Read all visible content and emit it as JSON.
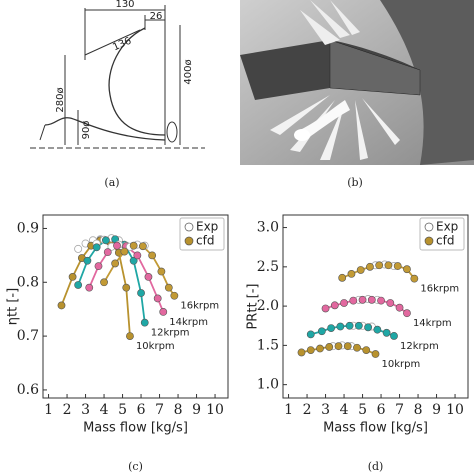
{
  "figures": {
    "a": {
      "caption": "(a)",
      "dimensions": [
        "130",
        "26",
        "136",
        "280ø",
        "400ø",
        "90ø"
      ]
    },
    "b": {
      "caption": "(b)"
    }
  },
  "chart_data": [
    {
      "type": "line",
      "caption": "(c)",
      "ylabel": "ηtt [-]",
      "xlabel": "Mass flow [kg/s]",
      "xlim": [
        0.7,
        10.7
      ],
      "xticks": [
        1,
        2,
        3,
        4,
        5,
        6,
        7,
        8,
        9,
        10
      ],
      "ylim": [
        0.585,
        0.925
      ],
      "yticks": [
        0.6,
        0.7,
        0.8,
        0.9
      ],
      "legend": [
        "Exp",
        "cfd"
      ],
      "legend_position": "upper right",
      "series": [
        {
          "name": "10krpm",
          "color": "#b8922e",
          "x": [
            1.7,
            2.3,
            2.8,
            3.3,
            3.8,
            4.3,
            4.8,
            5.2,
            5.4
          ],
          "values": [
            0.757,
            0.81,
            0.845,
            0.868,
            0.878,
            0.875,
            0.855,
            0.79,
            0.7
          ],
          "exp_x": [
            2.6,
            3.0,
            3.4,
            3.8
          ],
          "exp_values": [
            0.862,
            0.872,
            0.878,
            0.88
          ]
        },
        {
          "name": "12krpm",
          "color": "#1fa7a5",
          "x": [
            2.6,
            3.1,
            3.6,
            4.1,
            4.6,
            5.1,
            5.6,
            6.0,
            6.2
          ],
          "values": [
            0.795,
            0.84,
            0.865,
            0.878,
            0.88,
            0.87,
            0.84,
            0.78,
            0.725
          ],
          "exp_x": [
            3.6,
            4.0,
            4.4,
            4.8
          ],
          "exp_values": [
            0.872,
            0.879,
            0.882,
            0.878
          ]
        },
        {
          "name": "14krpm",
          "color": "#e2689f",
          "x": [
            3.2,
            3.7,
            4.2,
            4.7,
            5.2,
            5.8,
            6.4,
            6.9,
            7.2
          ],
          "values": [
            0.79,
            0.83,
            0.856,
            0.868,
            0.867,
            0.85,
            0.81,
            0.77,
            0.745
          ],
          "exp_x": [
            4.4,
            4.8,
            5.2
          ],
          "exp_values": [
            0.866,
            0.87,
            0.868
          ]
        },
        {
          "name": "16krpm",
          "color": "#c29a35",
          "x": [
            4.0,
            4.6,
            5.1,
            5.6,
            6.1,
            6.6,
            7.1,
            7.5,
            7.8
          ],
          "values": [
            0.8,
            0.835,
            0.857,
            0.868,
            0.867,
            0.85,
            0.82,
            0.79,
            0.775
          ],
          "exp_x": [
            5.4,
            5.8,
            6.2
          ],
          "exp_values": [
            0.866,
            0.87,
            0.868
          ]
        }
      ]
    },
    {
      "type": "line",
      "caption": "(d)",
      "ylabel": "PRtt [-]",
      "xlabel": "Mass flow [kg/s]",
      "xlim": [
        0.7,
        10.7
      ],
      "xticks": [
        1,
        2,
        3,
        4,
        5,
        6,
        7,
        8,
        9,
        10
      ],
      "ylim": [
        0.83,
        3.16
      ],
      "yticks": [
        {
          "value": 1,
          "label": "1.0"
        },
        1.5,
        {
          "value": 2,
          "label": "2.0"
        },
        2.5,
        {
          "value": 3,
          "label": "3.0"
        }
      ],
      "legend": [
        "Exp",
        "cfd"
      ],
      "legend_position": "upper right",
      "series": [
        {
          "name": "10krpm",
          "color": "#b8922e",
          "x": [
            1.7,
            2.2,
            2.7,
            3.2,
            3.7,
            4.2,
            4.7,
            5.2,
            5.7
          ],
          "values": [
            1.41,
            1.44,
            1.46,
            1.48,
            1.49,
            1.49,
            1.47,
            1.44,
            1.39
          ],
          "exp_x": [
            3.4,
            3.9,
            4.4
          ],
          "exp_values": [
            1.49,
            1.5,
            1.49
          ]
        },
        {
          "name": "12krpm",
          "color": "#1fa7a5",
          "x": [
            2.2,
            2.8,
            3.3,
            3.8,
            4.3,
            4.8,
            5.3,
            5.8,
            6.3,
            6.7
          ],
          "values": [
            1.64,
            1.68,
            1.72,
            1.74,
            1.75,
            1.75,
            1.73,
            1.7,
            1.66,
            1.62
          ],
          "exp_x": [
            4.5,
            5.0,
            5.5
          ],
          "exp_values": [
            1.75,
            1.75,
            1.74
          ]
        },
        {
          "name": "14krpm",
          "color": "#e2689f",
          "x": [
            3.0,
            3.5,
            4.0,
            4.5,
            5.0,
            5.5,
            6.0,
            6.5,
            7.0,
            7.4
          ],
          "values": [
            1.97,
            2.01,
            2.04,
            2.07,
            2.08,
            2.08,
            2.07,
            2.04,
            1.98,
            1.91
          ],
          "exp_x": [
            4.8,
            5.3,
            5.8
          ],
          "exp_values": [
            2.08,
            2.09,
            2.08
          ]
        },
        {
          "name": "16krpm",
          "color": "#c29a35",
          "x": [
            3.9,
            4.4,
            4.9,
            5.4,
            5.9,
            6.4,
            6.9,
            7.4,
            7.8
          ],
          "values": [
            2.36,
            2.41,
            2.46,
            2.5,
            2.52,
            2.52,
            2.51,
            2.47,
            2.35
          ],
          "exp_x": [
            5.7,
            6.2,
            6.7
          ],
          "exp_values": [
            2.52,
            2.53,
            2.51
          ]
        }
      ]
    }
  ]
}
